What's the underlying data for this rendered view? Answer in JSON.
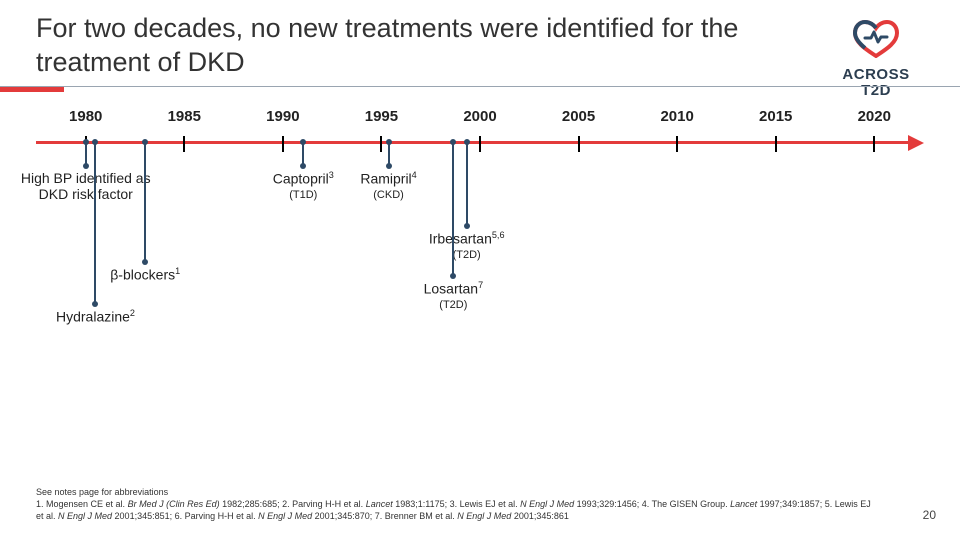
{
  "title": "For two decades, no new treatments were identified for the treatment of DKD",
  "logo": {
    "line1": "ACROSS",
    "line2": "T2D"
  },
  "timeline": {
    "type": "timeline",
    "axis_color": "#e33b3b",
    "background_color": "#ffffff",
    "label_fontsize": 15,
    "start": 1980,
    "end": 2020,
    "step": 5,
    "years": [
      {
        "label": "1980",
        "x_pct": 5.6
      },
      {
        "label": "1985",
        "x_pct": 16.7
      },
      {
        "label": "1990",
        "x_pct": 27.8
      },
      {
        "label": "1995",
        "x_pct": 38.9
      },
      {
        "label": "2000",
        "x_pct": 50.0
      },
      {
        "label": "2005",
        "x_pct": 61.1
      },
      {
        "label": "2010",
        "x_pct": 72.2
      },
      {
        "label": "2015",
        "x_pct": 83.3
      },
      {
        "label": "2020",
        "x_pct": 94.4
      }
    ],
    "lead_color": "#2e4a66",
    "events": [
      {
        "id": "hbp",
        "year": 1980,
        "x_pct": 5.6,
        "lead_h": 24,
        "wrap": true,
        "name_html": "High BP identified as DKD risk factor",
        "sub": ""
      },
      {
        "id": "beta",
        "year": 1983,
        "x_pct": 12.3,
        "lead_h": 120,
        "wrap": false,
        "name_html": "β-blockers<sup>1</sup>",
        "sub": ""
      },
      {
        "id": "hydra",
        "year": 1980.5,
        "x_pct": 6.7,
        "lead_h": 162,
        "wrap": false,
        "name_html": "Hydralazine<sup>2</sup>",
        "sub": ""
      },
      {
        "id": "capto",
        "year": 1993,
        "x_pct": 30.1,
        "lead_h": 24,
        "wrap": false,
        "name_html": "Captopril<sup>3</sup>",
        "sub": "(T1D)"
      },
      {
        "id": "rami",
        "year": 1997,
        "x_pct": 39.7,
        "lead_h": 24,
        "wrap": false,
        "name_html": "Ramipril<sup>4</sup>",
        "sub": "(CKD)"
      },
      {
        "id": "irbe",
        "year": 2001,
        "x_pct": 48.5,
        "lead_h": 84,
        "wrap": false,
        "name_html": "Irbesartan<sup>5,6</sup>",
        "sub": "(T2D)"
      },
      {
        "id": "losa",
        "year": 2001,
        "x_pct": 47.0,
        "lead_h": 134,
        "wrap": false,
        "name_html": "Losartan<sup>7</sup>",
        "sub": "(T2D)"
      }
    ]
  },
  "footer": {
    "note": "See notes page for abbreviations",
    "refs_html": "1. Mogensen CE et al. <em>Br Med J (Clin Res Ed)</em> 1982;285:685; 2. Parving H-H et al. <em>Lancet</em> 1983;1:1175; 3. Lewis EJ et al. <em>N Engl J Med</em> 1993;329:1456; 4. The GISEN Group. <em>Lancet</em> 1997;349:1857; 5. Lewis EJ et al. <em>N Engl J Med</em> 2001;345:851; 6. Parving H-H et al. <em>N Engl J Med</em> 2001;345:870; 7. Brenner BM et al. <em>N Engl J Med</em> 2001;345:861"
  },
  "page_number": "20"
}
